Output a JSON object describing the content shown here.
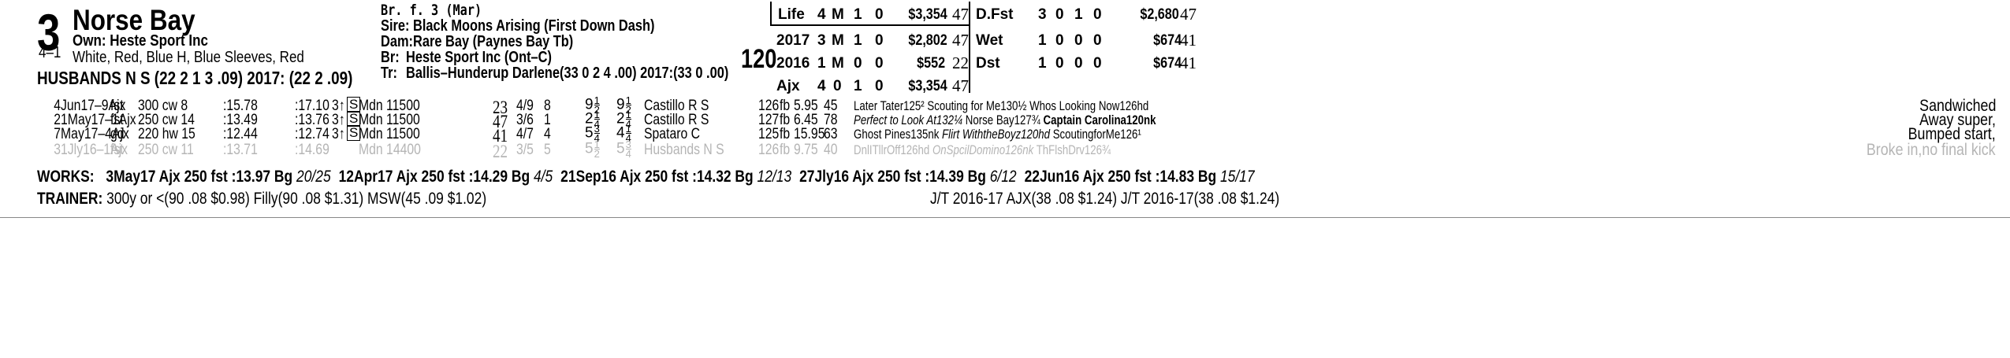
{
  "horse": {
    "post": "3",
    "name": "Norse Bay",
    "odds": "4–1",
    "owner": "Own: Heste Sport Inc",
    "silks": "White, Red, Blue H, Blue Sleeves, Red",
    "jockey_line": "HUSBANDS N S (22 2 1 3 .09) 2017: (22 2 .09)",
    "weight": "120"
  },
  "breeding": {
    "sex_age": "Br. f. 3 (Mar)",
    "sire": "Sire: Black Moons Arising (First Down Dash)",
    "dam": "Dam:Rare Bay (Paynes Bay Tb)",
    "breeder_label": "Br:",
    "breeder": "Heste Sport Inc (Ont–C)",
    "trainer_label": "Tr:",
    "trainer": "Ballis–Hunderup Darlene(33 0 2 4 .00)  2017:(33 0 .00)"
  },
  "stats_left": [
    {
      "label": "Life",
      "starts": "4",
      "w": "M",
      "p": "1",
      "s": "0",
      "earnings": "$3,354",
      "fig": "47"
    },
    {
      "label": "2017",
      "starts": "3",
      "w": "M",
      "p": "1",
      "s": "0",
      "earnings": "$2,802",
      "fig": "47"
    },
    {
      "label": "2016",
      "starts": "1",
      "w": "M",
      "p": "0",
      "s": "0",
      "earnings": "$552",
      "fig": "22"
    },
    {
      "label": "Ajx",
      "starts": "4",
      "w": "0",
      "p": "1",
      "s": "0",
      "earnings": "$3,354",
      "fig": "47"
    }
  ],
  "stats_right": [
    {
      "label": "D.Fst",
      "starts": "3",
      "w": "0",
      "p": "1",
      "s": "0",
      "earnings": "$2,680",
      "fig": "47"
    },
    {
      "label": "Wet",
      "starts": "1",
      "w": "0",
      "p": "0",
      "s": "0",
      "earnings": "$674",
      "fig": "41"
    },
    {
      "label": "Dst",
      "starts": "1",
      "w": "0",
      "p": "0",
      "s": "0",
      "earnings": "$674",
      "fig": "41"
    }
  ],
  "races": [
    {
      "date": "4Jun17–9Ajx",
      "cond": "fst",
      "dist": "300 cw 8",
      "t1": ":15.78",
      "t2": ":17.10",
      "age": "3↑",
      "sbox": "S",
      "race": "Mdn 11500",
      "spd": "23",
      "pp": "4/9",
      "st": "8",
      "c1": "9",
      "c1n": "1",
      "c1d": "2",
      "c2": "9",
      "c2n": "1",
      "c2d": "2",
      "jockey": "Castillo R S",
      "wt": "126",
      "eq": "fb",
      "odds": "5.95",
      "fig": "45",
      "comment": "Later Tater125² Scouting for Me130½ Whos Looking Now126hd",
      "comment_italic": "",
      "comment_bold": "",
      "comment_tail": "",
      "remark": "Sandwiched"
    },
    {
      "date": "21May17–1Ajx",
      "cond": "fst",
      "dist": "250 cw 14",
      "t1": ":13.49",
      "t2": ":13.76",
      "age": "3↑",
      "sbox": "S",
      "race": "Mdn 11500",
      "spd": "47",
      "pp": "3/6",
      "st": "1",
      "c1": "2",
      "c1n": "1",
      "c1d": "4",
      "c2": "2",
      "c2n": "1",
      "c2d": "4",
      "jockey": "Castillo R S",
      "wt": "127",
      "eq": "fb",
      "odds": "6.45",
      "fig": "78",
      "comment": "",
      "comment_italic": "Perfect to Look At132¼",
      "comment_bold": "Captain Carolina120nk",
      "comment_tail": " Norse Bay127¾ ",
      "remark": "Away super,"
    },
    {
      "date": "7May17–4Ajx",
      "cond": "gd",
      "dist": "220 hw 15",
      "t1": ":12.44",
      "t2": ":12.74",
      "age": "3↑",
      "sbox": "S",
      "race": "Mdn 11500",
      "spd": "41",
      "pp": "4/7",
      "st": "4",
      "c1": "5",
      "c1n": "3",
      "c1d": "4",
      "c2": "4",
      "c2n": "1",
      "c2d": "4",
      "jockey": "Spataro C",
      "wt": "125",
      "eq": "fb",
      "odds": "15.95",
      "fig": "63",
      "comment": "Ghost Pines135nk ",
      "comment_italic": "Flirt WiththeBoyz120hd",
      "comment_bold": "",
      "comment_tail": " ScoutingforMe126¹",
      "remark": "Bumped start,"
    },
    {
      "date": "31Jly16–1Ajx",
      "cond": "fst",
      "dist": "250 cw 11",
      "t1": ":13.71",
      "t2": ":14.69",
      "age": "",
      "sbox": "",
      "race": "Mdn 14400",
      "spd": "22",
      "pp": "3/5",
      "st": "5",
      "c1": "5",
      "c1n": "1",
      "c1d": "2",
      "c2": "5",
      "c2n": "3",
      "c2d": "4",
      "jockey": "Husbands N S",
      "wt": "126",
      "eq": "fb",
      "odds": "9.75",
      "fig": "40",
      "comment": "DnlITllrOff126hd ",
      "comment_italic": "OnSpcilDomino126nk",
      "comment_bold": "",
      "comment_tail": " ThFlshDrv126¾",
      "remark": "Broke in,no final kick"
    }
  ],
  "works": {
    "label": "WORKS:",
    "items": [
      {
        "date": "3May17",
        "track": "Ajx 250 fst",
        "time": ":13.97 Bg",
        "rank": "20/25"
      },
      {
        "date": "12Apr17",
        "track": "Ajx 250 fst",
        "time": ":14.29 Bg",
        "rank": "4/5"
      },
      {
        "date": "21Sep16",
        "track": "Ajx 250 fst",
        "time": ":14.32 Bg",
        "rank": "12/13"
      },
      {
        "date": "27Jly16",
        "track": "Ajx 250 fst",
        "time": ":14.39 Bg",
        "rank": "6/12"
      },
      {
        "date": "22Jun16",
        "track": "Ajx 250 fst",
        "time": ":14.83 Bg",
        "rank": "15/17"
      }
    ]
  },
  "trainer_stats": {
    "label": "TRAINER:",
    "text": "300y or <(90 .08 $0.98) Filly(90 .08 $1.31) MSW(45 .09 $1.02)",
    "jt": "J/T 2016-17 AJX(38 .08 $1.24)  J/T 2016-17(38 .08 $1.24)"
  }
}
